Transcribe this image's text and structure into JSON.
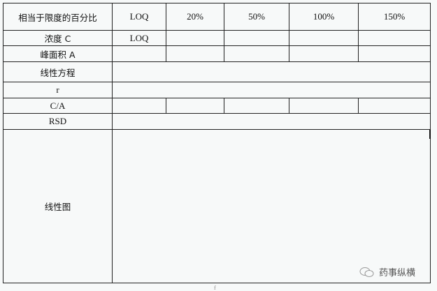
{
  "table": {
    "header": [
      "相当于限度的百分比",
      "LOQ",
      "20%",
      "50%",
      "100%",
      "150%"
    ],
    "rows": {
      "concentration": {
        "label": "浓度 C",
        "cells": [
          "LOQ",
          "",
          "",
          "",
          ""
        ]
      },
      "peak_area": {
        "label": "峰面积 A"
      },
      "linear_equation": {
        "label": "线性方程"
      },
      "r": {
        "label": "r"
      },
      "ca": {
        "label": "C/A"
      },
      "rsd": {
        "label": "RSD"
      },
      "linear_plot": {
        "label": "线性图"
      }
    }
  },
  "watermark": {
    "text": "药事纵横",
    "icon": "wechat-icon"
  },
  "footer_mark": "f"
}
